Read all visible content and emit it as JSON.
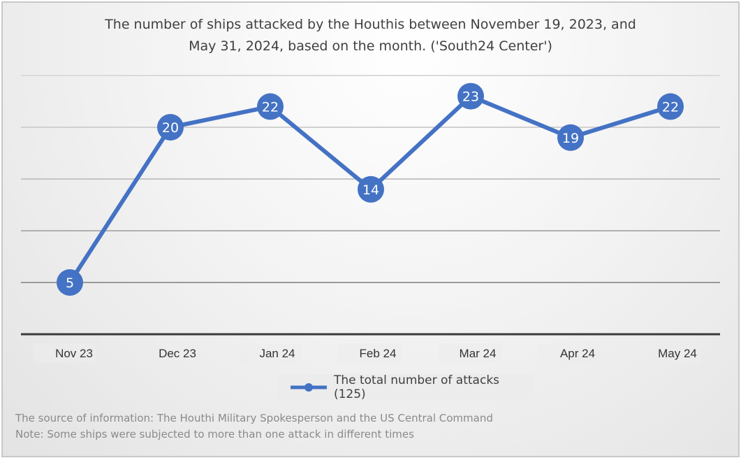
{
  "chart_data": {
    "type": "line",
    "title": "The number of ships attacked by the Houthis between November 19, 2023, and May 31, 2024, based on the month. ('South24 Center')",
    "title_lines": [
      "The number of ships attacked by the Houthis between November 19, 2023, and",
      "May 31, 2024, based on the month. ('South24 Center')"
    ],
    "categories": [
      "Nov 23",
      "Dec 23",
      "Jan 24",
      "Feb 24",
      "Mar 24",
      "Apr 24",
      "May 24"
    ],
    "series": [
      {
        "name": "The total number of attacks (125)",
        "values": [
          5,
          20,
          22,
          14,
          23,
          19,
          22
        ],
        "color": "#4472c4"
      }
    ],
    "ylim": [
      0,
      25
    ],
    "grid": true,
    "y_tick_labels_shown": false,
    "data_labels": true,
    "legend": "bottom",
    "xlabel": "",
    "ylabel": ""
  },
  "footnotes": [
    "The source of information: The Houthi Military Spokesperson and the US Central Command",
    "Note: Some ships were subjected to more than one attack in different times"
  ]
}
